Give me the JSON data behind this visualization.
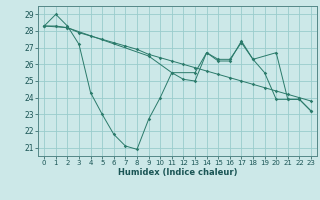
{
  "xlabel": "Humidex (Indice chaleur)",
  "ylabel": "",
  "bg_color": "#cce8e8",
  "grid_color": "#99cccc",
  "line_color": "#2a7a6a",
  "ylim": [
    20.5,
    29.5
  ],
  "xlim": [
    -0.5,
    23.5
  ],
  "yticks": [
    21,
    22,
    23,
    24,
    25,
    26,
    27,
    28,
    29
  ],
  "xticks": [
    0,
    1,
    2,
    3,
    4,
    5,
    6,
    7,
    8,
    9,
    10,
    11,
    12,
    13,
    14,
    15,
    16,
    17,
    18,
    19,
    20,
    21,
    22,
    23
  ],
  "series": [
    {
      "x": [
        0,
        1,
        2,
        3,
        4,
        5,
        6,
        7,
        8,
        9,
        10,
        11,
        12,
        13,
        14,
        15,
        16,
        17,
        18,
        19,
        20,
        21,
        22,
        23
      ],
      "y": [
        28.3,
        29.0,
        28.3,
        27.2,
        24.3,
        23.0,
        21.8,
        21.1,
        20.9,
        22.7,
        24.0,
        25.5,
        25.1,
        25.0,
        26.7,
        26.2,
        26.2,
        27.4,
        26.3,
        25.5,
        23.9,
        23.9,
        23.9,
        23.2
      ]
    },
    {
      "x": [
        0,
        1,
        2,
        3,
        4,
        5,
        6,
        7,
        8,
        9,
        10,
        11,
        12,
        13,
        14,
        15,
        16,
        17,
        18,
        19,
        20,
        21,
        22,
        23
      ],
      "y": [
        28.3,
        28.3,
        28.2,
        27.9,
        27.7,
        27.5,
        27.3,
        27.1,
        26.9,
        26.6,
        26.4,
        26.2,
        26.0,
        25.8,
        25.6,
        25.4,
        25.2,
        25.0,
        24.8,
        24.6,
        24.4,
        24.2,
        24.0,
        23.8
      ]
    },
    {
      "x": [
        0,
        2,
        9,
        11,
        13,
        14,
        15,
        16,
        17,
        18,
        20,
        21,
        22,
        23
      ],
      "y": [
        28.3,
        28.2,
        26.5,
        25.5,
        25.5,
        26.7,
        26.3,
        26.3,
        27.3,
        26.3,
        26.7,
        23.9,
        23.9,
        23.2
      ]
    }
  ]
}
